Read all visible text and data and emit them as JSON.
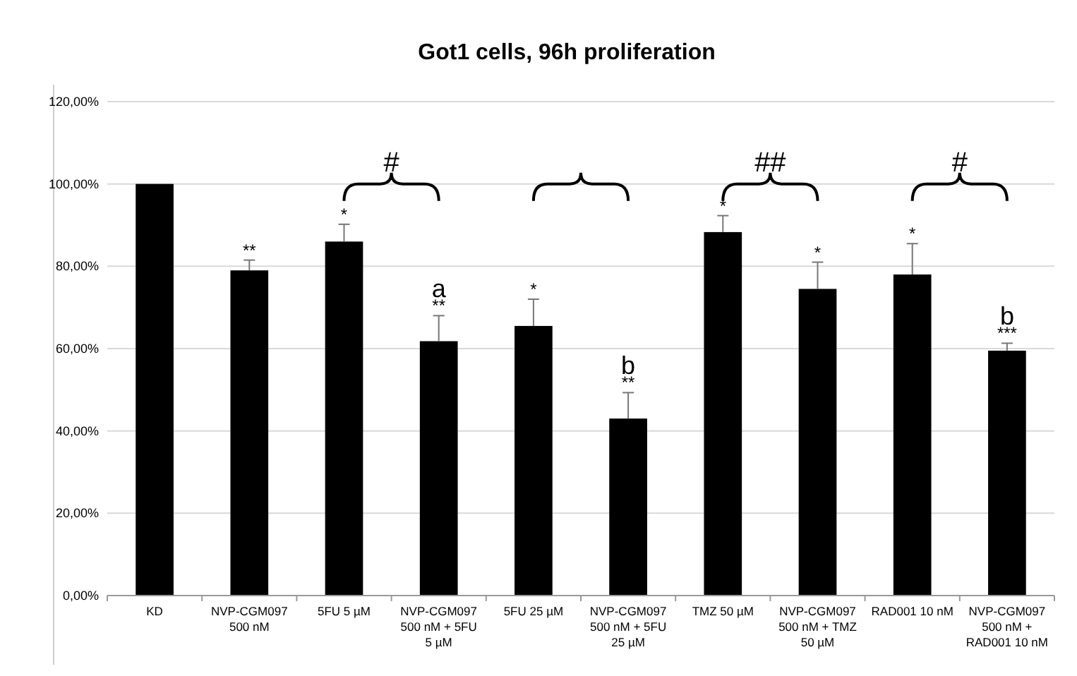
{
  "chart_data": {
    "type": "bar",
    "title": "Got1 cells, 96h proliferation",
    "categories": [
      "KD",
      "NVP-CGM097\n500 nM",
      "5FU 5 µM",
      "NVP-CGM097\n500 nM + 5FU\n5 µM",
      "5FU 25 µM",
      "NVP-CGM097\n500 nM + 5FU\n25 µM",
      "TMZ 50 µM",
      "NVP-CGM097\n500 nM + TMZ\n50 µM",
      "RAD001 10 nM",
      "NVP-CGM097\n500 nM +\nRAD001 10 nM"
    ],
    "values": [
      100,
      79,
      86,
      61.8,
      65.5,
      43,
      88.3,
      74.5,
      78,
      59.5
    ],
    "color": "#000000",
    "errors": [
      null,
      [
        79,
        81.5
      ],
      [
        86,
        90.2
      ],
      [
        61.8,
        68
      ],
      [
        65.5,
        72
      ],
      [
        43,
        49.3
      ],
      [
        88.3,
        92.3
      ],
      [
        74.5,
        81
      ],
      [
        78,
        85.5
      ],
      [
        59.5,
        61.3
      ]
    ],
    "ylim": [
      0,
      120
    ],
    "yticks": [
      {
        "value": 0,
        "label": "0,00%"
      },
      {
        "value": 20,
        "label": "20,00%"
      },
      {
        "value": 40,
        "label": "40,00%"
      },
      {
        "value": 60,
        "label": "60,00%"
      },
      {
        "value": 80,
        "label": "80,00%"
      },
      {
        "value": 100,
        "label": "100,00%"
      },
      {
        "value": 120,
        "label": "120,00%"
      }
    ],
    "grid": "y",
    "annotations": [
      {
        "text": "**",
        "x": "NVP-CGM097\n500 nM",
        "y": 81.5
      },
      {
        "text": "*",
        "x": "5FU 5 µM",
        "y": 90.2
      },
      {
        "text": "**",
        "x": "NVP-CGM097\n500 nM + 5FU\n5 µM",
        "y": 68
      },
      {
        "text": "a",
        "x": "NVP-CGM097\n500 nM + 5FU\n5 µM",
        "y": 68
      },
      {
        "text": "*",
        "x": "5FU 25 µM",
        "y": 72
      },
      {
        "text": "**",
        "x": "NVP-CGM097\n500 nM + 5FU\n25 µM",
        "y": 49.3
      },
      {
        "text": "b",
        "x": "NVP-CGM097\n500 nM + 5FU\n25 µM",
        "y": 49.3
      },
      {
        "text": "*",
        "x": "TMZ 50 µM",
        "y": 92.3
      },
      {
        "text": "*",
        "x": "NVP-CGM097\n500 nM + TMZ\n50 µM",
        "y": 81
      },
      {
        "text": "*",
        "x": "RAD001 10 nM",
        "y": 85.5
      },
      {
        "text": "***",
        "x": "NVP-CGM097\n500 nM +\nRAD001 10 nM",
        "y": 61.3
      },
      {
        "text": "b",
        "x": "NVP-CGM097\n500 nM +\nRAD001 10 nM",
        "y": 61.3
      },
      "#",
      "##",
      "#"
    ]
  }
}
